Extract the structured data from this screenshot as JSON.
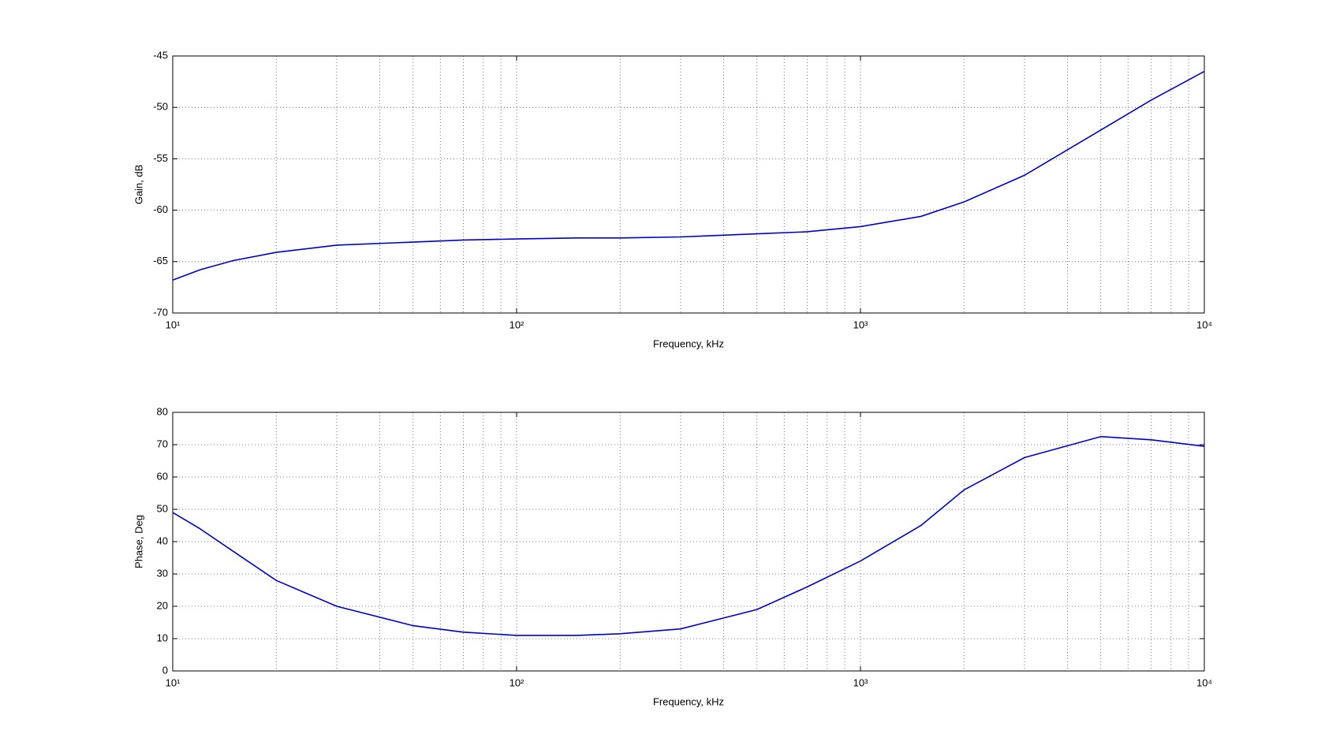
{
  "chart_data": [
    {
      "type": "line",
      "x_label": "Frequency, kHz",
      "y_label": "Gain, dB",
      "x_log": true,
      "grid": true,
      "minor_grid": true,
      "x": [
        10,
        12,
        15,
        20,
        30,
        50,
        70,
        100,
        150,
        200,
        300,
        500,
        700,
        1000,
        1500,
        2000,
        3000,
        5000,
        7000,
        10000
      ],
      "series": [
        {
          "color": "#0000cc",
          "values": [
            -66.8,
            -65.8,
            -64.9,
            -64.1,
            -63.4,
            -63.1,
            -62.9,
            -62.8,
            -62.7,
            -62.7,
            -62.6,
            -62.3,
            -62.1,
            -61.6,
            -60.6,
            -59.2,
            -56.6,
            -52.2,
            -49.3,
            -46.5
          ]
        }
      ],
      "xlim": [
        10,
        10000
      ],
      "xticks": [
        {
          "value": 10,
          "label": "10¹"
        },
        {
          "value": 100,
          "label": "10²"
        },
        {
          "value": 1000,
          "label": "10³"
        },
        {
          "value": 10000,
          "label": "10⁴"
        }
      ],
      "ylim": [
        -70,
        -45
      ],
      "yticks": [
        -70,
        -65,
        -60,
        -55,
        -50,
        -45
      ]
    },
    {
      "type": "line",
      "x_label": "Frequency, kHz",
      "y_label": "Phase, Deg",
      "x_log": true,
      "grid": true,
      "minor_grid": true,
      "x": [
        10,
        12,
        15,
        20,
        30,
        50,
        70,
        100,
        150,
        200,
        300,
        500,
        700,
        1000,
        1500,
        2000,
        3000,
        5000,
        7000,
        10000
      ],
      "series": [
        {
          "color": "#0000cc",
          "values": [
            49,
            44,
            37,
            28,
            20,
            14,
            12,
            11,
            11,
            11.5,
            13,
            19,
            26,
            34,
            45,
            56,
            66,
            72.5,
            71.5,
            69.5
          ]
        }
      ],
      "xlim": [
        10,
        10000
      ],
      "xticks": [
        {
          "value": 10,
          "label": "10¹"
        },
        {
          "value": 100,
          "label": "10²"
        },
        {
          "value": 1000,
          "label": "10³"
        },
        {
          "value": 10000,
          "label": "10⁴"
        }
      ],
      "ylim": [
        0,
        80
      ],
      "yticks": [
        0,
        10,
        20,
        30,
        40,
        50,
        60,
        70,
        80
      ]
    }
  ]
}
